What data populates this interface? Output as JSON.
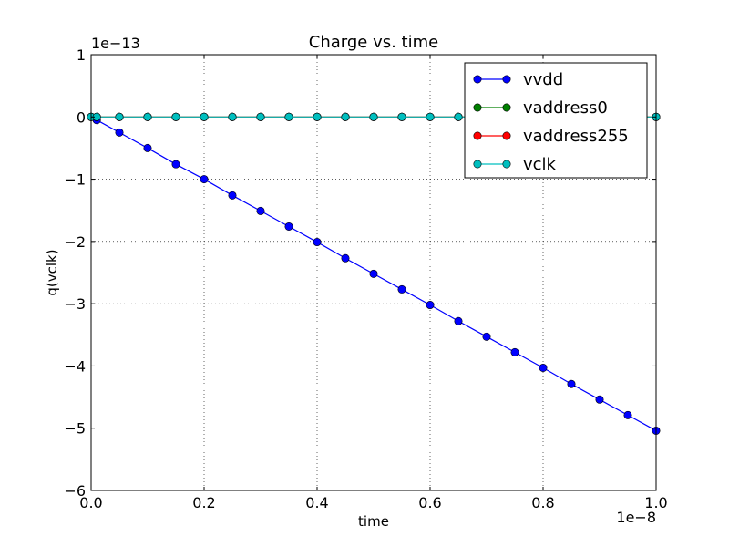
{
  "chart_data": {
    "type": "line",
    "title": "Charge vs. time",
    "xlabel": "time",
    "ylabel": "q(vclk)",
    "x_offset_label": "1e−8",
    "y_offset_label": "1e−13",
    "xlim": [
      0.0,
      1.0
    ],
    "ylim": [
      -6,
      1
    ],
    "xticks": [
      0.0,
      0.2,
      0.4,
      0.6,
      0.8,
      1.0
    ],
    "xtick_labels": [
      "0.0",
      "0.2",
      "0.4",
      "0.6",
      "0.8",
      "1.0"
    ],
    "yticks": [
      1,
      0,
      -1,
      -2,
      -3,
      -4,
      -5,
      -6
    ],
    "ytick_labels": [
      "1",
      "0",
      "−1",
      "−2",
      "−3",
      "−4",
      "−5",
      "−6"
    ],
    "grid": true,
    "legend_position": "top-right",
    "x": [
      0.0,
      0.01,
      0.05,
      0.1,
      0.15,
      0.2,
      0.25,
      0.3,
      0.35,
      0.4,
      0.45,
      0.5,
      0.55,
      0.6,
      0.65,
      0.7,
      0.75,
      0.8,
      0.85,
      0.9,
      0.95,
      1.0
    ],
    "series": [
      {
        "name": "vvdd",
        "color": "#0000ff",
        "values": [
          0.0,
          -0.05,
          -0.25,
          -0.5,
          -0.76,
          -1.0,
          -1.26,
          -1.51,
          -1.76,
          -2.01,
          -2.27,
          -2.52,
          -2.77,
          -3.02,
          -3.28,
          -3.53,
          -3.78,
          -4.03,
          -4.29,
          -4.54,
          -4.79,
          -5.04
        ]
      },
      {
        "name": "vaddress0",
        "color": "#008000",
        "values": [
          0,
          0,
          0,
          0,
          0,
          0,
          0,
          0,
          0,
          0,
          0,
          0,
          0,
          0,
          0,
          0,
          0,
          0,
          0,
          0,
          0,
          0
        ]
      },
      {
        "name": "vaddress255",
        "color": "#ff0000",
        "values": [
          0,
          0,
          0,
          0,
          0,
          0,
          0,
          0,
          0,
          0,
          0,
          0,
          0,
          0,
          0,
          0,
          0,
          0,
          0,
          0,
          0,
          0
        ]
      },
      {
        "name": "vclk",
        "color": "#00bfbf",
        "values": [
          0,
          0,
          0,
          0,
          0,
          0,
          0,
          0,
          0,
          0,
          0,
          0,
          0,
          0,
          0,
          0,
          0,
          0,
          0,
          0,
          0,
          0
        ]
      }
    ]
  }
}
